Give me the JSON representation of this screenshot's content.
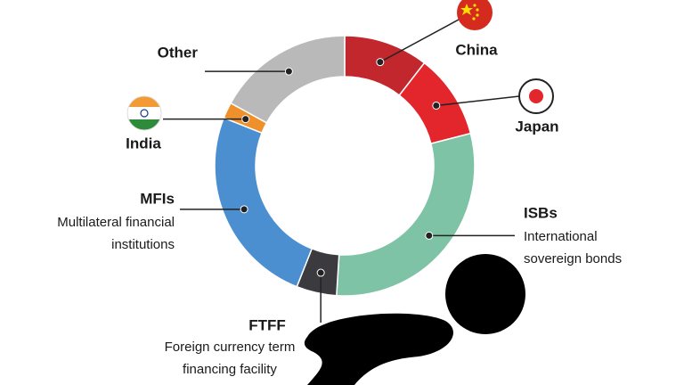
{
  "chart_data": {
    "type": "donut",
    "categories": [
      "China",
      "Japan",
      "ISBs",
      "FTFF",
      "MFIs",
      "India",
      "Other"
    ],
    "descriptions": [
      null,
      null,
      [
        "International",
        "sovereign bonds"
      ],
      [
        "Foreign currency term",
        "financing facility"
      ],
      [
        "Multilateral financial",
        "institutions"
      ],
      null,
      null
    ],
    "values": [
      10.5,
      10.5,
      30,
      5,
      25,
      2,
      17
    ],
    "colors": [
      "#c1272d",
      "#e3262b",
      "#7fc3a6",
      "#3b3a3f",
      "#4b8fd1",
      "#f0902a",
      "#b9b9b9"
    ]
  }
}
